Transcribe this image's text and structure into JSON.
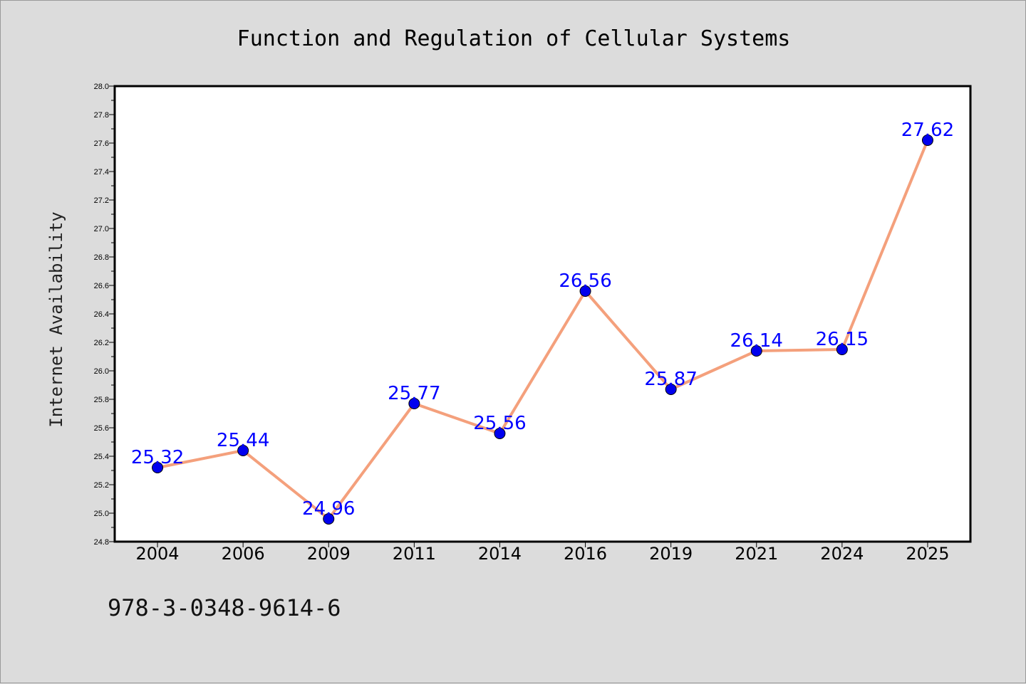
{
  "chart_data": {
    "type": "line",
    "title": "Function and Regulation of Cellular Systems",
    "xlabel": "",
    "ylabel": "Internet Availability",
    "categories": [
      "2004",
      "2006",
      "2009",
      "2011",
      "2014",
      "2016",
      "2019",
      "2021",
      "2024",
      "2025"
    ],
    "series": [
      {
        "values": [
          25.32,
          25.44,
          24.96,
          25.77,
          25.56,
          26.56,
          25.87,
          26.14,
          26.15,
          27.62
        ]
      }
    ],
    "data_labels": [
      "25.32",
      "25.44",
      "24.96",
      "25.77",
      "25.56",
      "26.56",
      "25.87",
      "26.14",
      "26.15",
      "27.62"
    ],
    "ylim": [
      24.8,
      28.0
    ],
    "yticks": [
      "24.8",
      "25.0",
      "25.2",
      "25.4",
      "25.6",
      "25.8",
      "26.0",
      "26.2",
      "26.4",
      "26.6",
      "26.8",
      "27.0",
      "27.2",
      "27.4",
      "27.6",
      "27.8",
      "28.0"
    ],
    "grid": false,
    "legend": "none",
    "colors": {
      "line": "#f4a07c",
      "marker": "#0000ee",
      "label": "#0000ff",
      "background": "#dcdcdc",
      "plot_bg": "#ffffff"
    }
  },
  "annotation": "978-3-0348-9614-6"
}
